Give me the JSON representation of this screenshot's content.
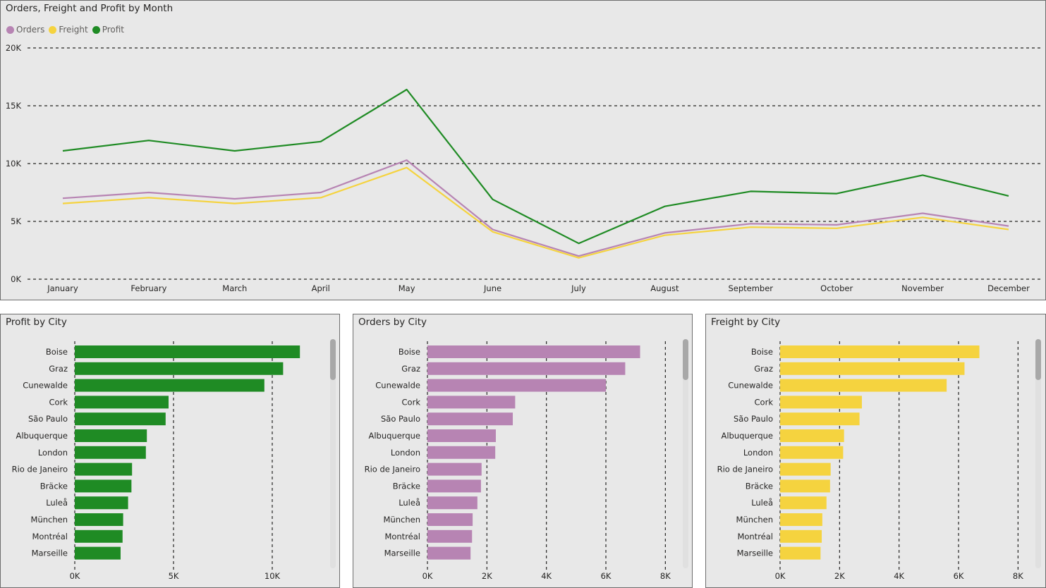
{
  "colors": {
    "orders": "#b784b3",
    "freight": "#f5d33f",
    "profit": "#1f8b24",
    "grid": "#252423",
    "axis_text": "#252423"
  },
  "chart_data": [
    {
      "type": "line",
      "title": "Orders, Freight and Profit by Month",
      "categories": [
        "January",
        "February",
        "March",
        "April",
        "May",
        "June",
        "July",
        "August",
        "September",
        "October",
        "November",
        "December"
      ],
      "series": [
        {
          "name": "Orders",
          "color": "#b784b3",
          "values": [
            7000,
            7500,
            6950,
            7500,
            10300,
            4300,
            2000,
            4000,
            4800,
            4700,
            5700,
            4600
          ]
        },
        {
          "name": "Freight",
          "color": "#f5d33f",
          "values": [
            6550,
            7050,
            6550,
            7050,
            9650,
            4100,
            1850,
            3800,
            4500,
            4400,
            5350,
            4300
          ]
        },
        {
          "name": "Profit",
          "color": "#1f8b24",
          "values": [
            11100,
            12000,
            11100,
            11900,
            16400,
            6900,
            3100,
            6300,
            7600,
            7400,
            9000,
            7200
          ]
        }
      ],
      "ylim": [
        0,
        20000
      ],
      "yticks": [
        {
          "v": 0,
          "label": "0K"
        },
        {
          "v": 5000,
          "label": "5K"
        },
        {
          "v": 10000,
          "label": "10K"
        },
        {
          "v": 15000,
          "label": "15K"
        },
        {
          "v": 20000,
          "label": "20K"
        }
      ],
      "grid": true,
      "legend": "top-left"
    },
    {
      "type": "bar",
      "orientation": "horizontal",
      "title": "Profit by City",
      "color": "#1f8b24",
      "categories": [
        "Boise",
        "Graz",
        "Cunewalde",
        "Cork",
        "São Paulo",
        "Albuquerque",
        "London",
        "Rio de Janeiro",
        "Bräcke",
        "Luleå",
        "München",
        "Montréal",
        "Marseille"
      ],
      "values": [
        11400,
        10550,
        9600,
        4750,
        4600,
        3650,
        3600,
        2900,
        2870,
        2700,
        2450,
        2420,
        2320
      ],
      "xlim": [
        0,
        12500
      ],
      "xticks": [
        {
          "v": 0,
          "label": "0K"
        },
        {
          "v": 5000,
          "label": "5K"
        },
        {
          "v": 10000,
          "label": "10K"
        }
      ],
      "grid": true
    },
    {
      "type": "bar",
      "orientation": "horizontal",
      "title": "Orders by City",
      "color": "#b784b3",
      "categories": [
        "Boise",
        "Graz",
        "Cunewalde",
        "Cork",
        "São Paulo",
        "Albuquerque",
        "London",
        "Rio de Janeiro",
        "Bräcke",
        "Luleå",
        "München",
        "Montréal",
        "Marseille"
      ],
      "values": [
        7150,
        6650,
        6000,
        2950,
        2870,
        2300,
        2280,
        1820,
        1800,
        1680,
        1520,
        1500,
        1450
      ],
      "xlim": [
        0,
        8300
      ],
      "xticks": [
        {
          "v": 0,
          "label": "0K"
        },
        {
          "v": 2000,
          "label": "2K"
        },
        {
          "v": 4000,
          "label": "4K"
        },
        {
          "v": 6000,
          "label": "6K"
        },
        {
          "v": 8000,
          "label": "8K"
        }
      ],
      "grid": true
    },
    {
      "type": "bar",
      "orientation": "horizontal",
      "title": "Freight by City",
      "color": "#f5d33f",
      "categories": [
        "Boise",
        "Graz",
        "Cunewalde",
        "Cork",
        "São Paulo",
        "Albuquerque",
        "London",
        "Rio de Janeiro",
        "Bräcke",
        "Luleå",
        "München",
        "Montréal",
        "Marseille"
      ],
      "values": [
        6700,
        6200,
        5600,
        2750,
        2670,
        2150,
        2120,
        1700,
        1680,
        1560,
        1420,
        1400,
        1360
      ],
      "xlim": [
        0,
        8300
      ],
      "xticks": [
        {
          "v": 0,
          "label": "0K"
        },
        {
          "v": 2000,
          "label": "2K"
        },
        {
          "v": 4000,
          "label": "4K"
        },
        {
          "v": 6000,
          "label": "6K"
        },
        {
          "v": 8000,
          "label": "8K"
        }
      ],
      "grid": true
    }
  ]
}
